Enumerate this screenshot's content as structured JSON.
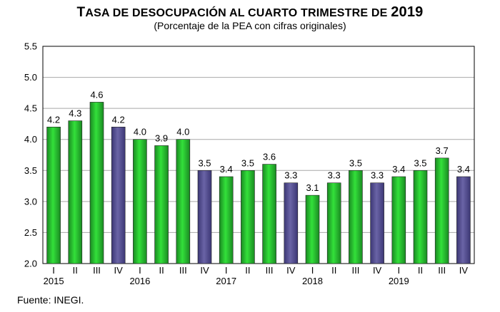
{
  "title_parts": {
    "t": "T",
    "mid": "ASA DE DESOCUPACIÓN AL CUARTO TRIMESTRE DE ",
    "year": "2019"
  },
  "subtitle": "(Porcentaje de la PEA con cifras originales)",
  "source": "Fuente: INEGI.",
  "colors": {
    "green": "#33e03a",
    "green_dark": "#1a8a22",
    "purple": "#6a64a6",
    "grid": "#a8a8a8",
    "frame": "#000000"
  },
  "chart_data": {
    "type": "bar",
    "title": "TASA DE DESOCUPACIÓN AL CUARTO TRIMESTRE DE 2019",
    "subtitle": "(Porcentaje de la PEA con cifras originales)",
    "xlabel": "",
    "ylabel": "",
    "ylim": [
      2.0,
      5.5
    ],
    "yticks": [
      "2.0",
      "2.5",
      "3.0",
      "3.5",
      "4.0",
      "4.5",
      "5.0",
      "5.5"
    ],
    "grid": true,
    "legend": "none",
    "categories": [
      "I",
      "II",
      "III",
      "IV",
      "I",
      "II",
      "III",
      "IV",
      "I",
      "II",
      "III",
      "IV",
      "I",
      "II",
      "III",
      "IV",
      "I",
      "II",
      "III",
      "IV"
    ],
    "years": [
      "2015",
      "2016",
      "2017",
      "2018",
      "2019"
    ],
    "values": [
      4.2,
      4.3,
      4.6,
      4.2,
      4.0,
      3.9,
      4.0,
      3.5,
      3.4,
      3.5,
      3.6,
      3.3,
      3.1,
      3.3,
      3.5,
      3.3,
      3.4,
      3.5,
      3.7,
      3.4
    ],
    "highlight": "IV quarter bars in purple, other quarters in green"
  }
}
